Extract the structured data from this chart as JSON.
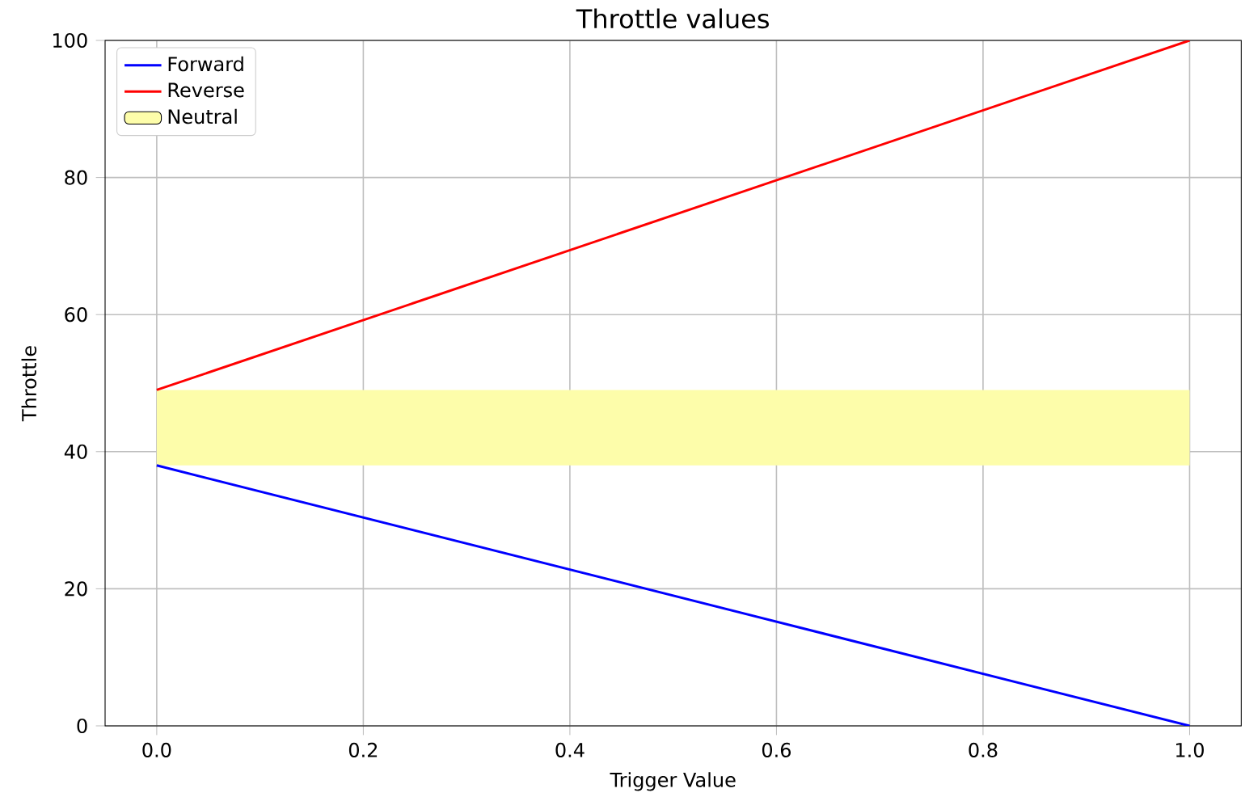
{
  "chart_data": {
    "type": "line",
    "title": "Throttle values",
    "xlabel": "Trigger Value",
    "ylabel": "Throttle",
    "xlim": [
      -0.05,
      1.05
    ],
    "ylim": [
      0,
      100
    ],
    "xticks": [
      {
        "value": 0,
        "label": "0.0"
      },
      {
        "value": 0.2,
        "label": "0.2"
      },
      {
        "value": 0.4,
        "label": "0.4"
      },
      {
        "value": 0.6,
        "label": "0.6"
      },
      {
        "value": 0.8,
        "label": "0.8"
      },
      {
        "value": 1,
        "label": "1.0"
      }
    ],
    "yticks": [
      0,
      20,
      40,
      60,
      80,
      100
    ],
    "x": [
      0,
      1
    ],
    "grid": true,
    "legend": "top left",
    "line_style": "solid",
    "marker": "none",
    "series": [
      {
        "name": "Forward",
        "color": "#0000ff",
        "values": [
          38,
          0
        ]
      },
      {
        "name": "Reverse",
        "color": "#ff0000",
        "values": [
          49,
          100
        ]
      }
    ],
    "bands": [
      {
        "axis": "y",
        "from": 38,
        "to": 49,
        "label": "Neutral",
        "color": "#fdfdaa"
      }
    ]
  }
}
